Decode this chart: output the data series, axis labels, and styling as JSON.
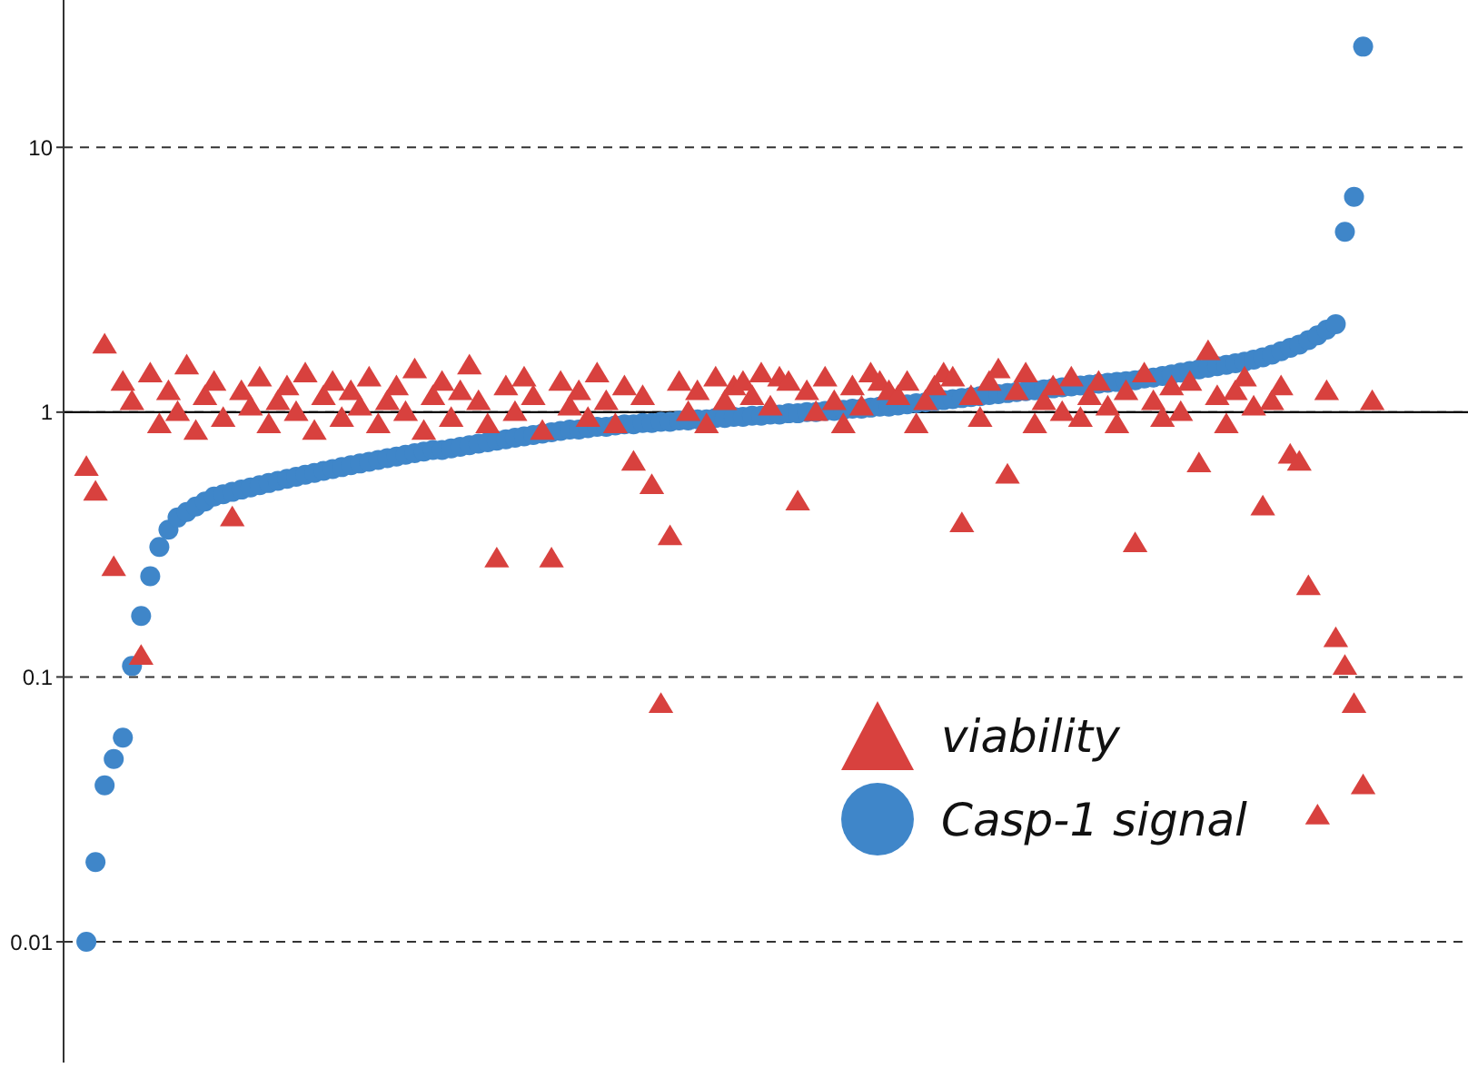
{
  "chart_data": {
    "type": "scatter",
    "categories": [
      null,
      null,
      null,
      null,
      null,
      null,
      null,
      null,
      null,
      null,
      null,
      null,
      null,
      null,
      null,
      null,
      null,
      null,
      null,
      null,
      null,
      null,
      null,
      null,
      null,
      null,
      null,
      null,
      null,
      null,
      null,
      null,
      null,
      null,
      null,
      null,
      null,
      null,
      null,
      null,
      null,
      null,
      null,
      null,
      null,
      null,
      null,
      null,
      null,
      null,
      null,
      null,
      null,
      null,
      null,
      null,
      null,
      null,
      null,
      null,
      null,
      null,
      null,
      null,
      null,
      null,
      null,
      null,
      null,
      null,
      null,
      null,
      null,
      null,
      null,
      null,
      null,
      null,
      null,
      null,
      null,
      null,
      null,
      null,
      null,
      null,
      null,
      null,
      null,
      null,
      null,
      null,
      null,
      null,
      null,
      null,
      null,
      null,
      null,
      null,
      null,
      null,
      null,
      null,
      null,
      null,
      null,
      null,
      null,
      null,
      null,
      null,
      null,
      null,
      null,
      null,
      null,
      null,
      null,
      null,
      null,
      null,
      null,
      null,
      null,
      null,
      null,
      null,
      null,
      null,
      null,
      null,
      null,
      null,
      null,
      null,
      null,
      null,
      null,
      null,
      null,
      null,
      null,
      null,
      null,
      null,
      null,
      null,
      null,
      null,
      null,
      null,
      null,
      null
    ],
    "series": [
      {
        "name": "viability",
        "color": "#d8413e",
        "marker": "triangle",
        "values": [
          null,
          null,
          0.62,
          0.5,
          1.8,
          0.26,
          1.3,
          1.1,
          0.12,
          1.4,
          0.9,
          1.2,
          1.0,
          1.5,
          0.85,
          1.15,
          1.3,
          0.95,
          0.4,
          1.2,
          1.05,
          1.35,
          0.9,
          1.1,
          1.25,
          1.0,
          1.4,
          0.85,
          1.15,
          1.3,
          0.95,
          1.2,
          1.05,
          1.35,
          0.9,
          1.1,
          1.25,
          1.0,
          1.45,
          0.85,
          1.15,
          1.3,
          0.95,
          1.2,
          1.5,
          1.1,
          0.9,
          0.28,
          1.25,
          1.0,
          1.35,
          1.15,
          0.85,
          0.28,
          1.3,
          1.05,
          1.2,
          0.95,
          1.4,
          1.1,
          0.9,
          1.25,
          0.65,
          1.15,
          0.53,
          0.079,
          0.34,
          1.3,
          1.0,
          1.2,
          0.9,
          1.35,
          1.1,
          1.25,
          1.3,
          1.15,
          1.4,
          1.05,
          1.35,
          1.3,
          0.46,
          1.2,
          1.0,
          1.35,
          1.1,
          0.9,
          1.25,
          1.05,
          1.4,
          1.3,
          1.2,
          1.15,
          1.3,
          0.9,
          1.1,
          1.25,
          1.4,
          1.35,
          0.38,
          1.15,
          0.95,
          1.3,
          1.45,
          0.58,
          1.2,
          1.4,
          0.9,
          1.1,
          1.25,
          1.0,
          1.35,
          0.95,
          1.15,
          1.3,
          1.05,
          0.9,
          1.2,
          0.32,
          1.4,
          1.1,
          0.95,
          1.25,
          1.0,
          1.3,
          0.64,
          1.7,
          1.15,
          0.9,
          1.2,
          1.35,
          1.05,
          0.44,
          1.1,
          1.25,
          0.69,
          0.65,
          0.22,
          0.03,
          1.2,
          0.14,
          0.11,
          0.079,
          0.039,
          1.1,
          null,
          null,
          null,
          null,
          null,
          null,
          null,
          null,
          null,
          null
        ]
      },
      {
        "name": "Casp-1 signal",
        "color": "#3f86c9",
        "marker": "circle",
        "values": [
          null,
          null,
          0.01,
          0.02,
          0.039,
          0.049,
          0.059,
          0.11,
          0.17,
          0.24,
          0.31,
          0.36,
          0.4,
          0.42,
          0.44,
          0.46,
          0.48,
          0.49,
          0.5,
          0.51,
          0.52,
          0.53,
          0.54,
          0.55,
          0.56,
          0.57,
          0.58,
          0.59,
          0.6,
          0.61,
          0.62,
          0.63,
          0.64,
          0.65,
          0.66,
          0.67,
          0.68,
          0.69,
          0.7,
          0.71,
          0.72,
          0.72,
          0.73,
          0.74,
          0.75,
          0.76,
          0.77,
          0.78,
          0.79,
          0.8,
          0.81,
          0.82,
          0.83,
          0.84,
          0.85,
          0.86,
          0.86,
          0.87,
          0.88,
          0.88,
          0.89,
          0.9,
          0.9,
          0.91,
          0.91,
          0.92,
          0.92,
          0.93,
          0.93,
          0.94,
          0.94,
          0.95,
          0.95,
          0.96,
          0.96,
          0.97,
          0.97,
          0.98,
          0.98,
          0.99,
          0.99,
          1.0,
          1.0,
          1.01,
          1.01,
          1.02,
          1.03,
          1.03,
          1.04,
          1.05,
          1.05,
          1.06,
          1.07,
          1.08,
          1.09,
          1.1,
          1.11,
          1.12,
          1.13,
          1.14,
          1.15,
          1.16,
          1.17,
          1.18,
          1.19,
          1.2,
          1.21,
          1.22,
          1.23,
          1.24,
          1.25,
          1.26,
          1.27,
          1.28,
          1.29,
          1.3,
          1.31,
          1.32,
          1.34,
          1.35,
          1.37,
          1.39,
          1.41,
          1.43,
          1.45,
          1.47,
          1.49,
          1.51,
          1.53,
          1.55,
          1.58,
          1.61,
          1.65,
          1.7,
          1.75,
          1.8,
          1.87,
          1.95,
          2.05,
          2.15,
          4.8,
          6.5,
          24,
          null,
          null,
          null,
          null,
          null,
          null,
          null,
          null,
          null,
          null,
          null
        ]
      }
    ],
    "log": "y",
    "ylim": [
      0.0035,
      36
    ],
    "yticks": [
      0.01,
      0.1,
      1,
      10
    ],
    "grid": "y",
    "ref_lines": [
      {
        "axis": "y",
        "value": 1,
        "color": "#000000",
        "line_style": "solid"
      }
    ],
    "legend": "bottom right",
    "tick_labels": "y"
  }
}
